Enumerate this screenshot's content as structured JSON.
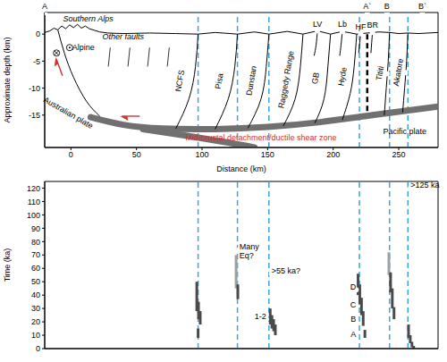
{
  "chart_data": [
    {
      "type": "cross_section",
      "xlabel": "Distance (km)",
      "ylabel": "Approximate depth (km)",
      "xlim": [
        -20,
        280
      ],
      "xticks": [
        0,
        50,
        100,
        150,
        200,
        250
      ],
      "ylim": [
        -21,
        4
      ],
      "yticks": [
        -15,
        -10,
        -5,
        0
      ],
      "section_labels": [
        {
          "label": "A",
          "x": -20
        },
        {
          "label": "A`",
          "x": 226
        },
        {
          "label": "B",
          "x": 241
        },
        {
          "label": "B`",
          "x": 268
        }
      ],
      "topography": {
        "color": "#000000",
        "x": [
          -20,
          -16,
          -13,
          -10,
          -7,
          -4,
          -1,
          2,
          5,
          8,
          11,
          14,
          18,
          22,
          28,
          40,
          60,
          80,
          97,
          110,
          127,
          140,
          151,
          165,
          177,
          188,
          198,
          207,
          218,
          226,
          235,
          243,
          250,
          257,
          265,
          280
        ],
        "y": [
          0.3,
          0.6,
          1.1,
          0.8,
          1.5,
          1.0,
          1.7,
          1.2,
          1.8,
          1.1,
          1.5,
          1.0,
          0.7,
          0.4,
          0.2,
          0.1,
          0.2,
          0.1,
          0,
          0.3,
          0,
          0.4,
          0,
          0.5,
          0,
          0.6,
          0,
          0.5,
          0,
          0.2,
          0.4,
          0.3,
          0.1,
          0.2,
          0.1,
          0.3
        ]
      },
      "alpine_fault": {
        "name": "Alpine",
        "color": "#000000",
        "x": [
          -10,
          -5,
          2,
          12,
          22
        ],
        "y": [
          0.8,
          -3.5,
          -8,
          -12.5,
          -15.2
        ]
      },
      "faults": [
        {
          "name": "NCFS",
          "x": [
            97,
            95,
            90,
            80
          ],
          "y": [
            0,
            -6,
            -12,
            -17.5
          ]
        },
        {
          "name": "Pisa",
          "x": [
            127,
            125,
            120,
            110
          ],
          "y": [
            0,
            -6,
            -12,
            -17.6
          ]
        },
        {
          "name": "Dunstan",
          "x": [
            151,
            149,
            145,
            135
          ],
          "y": [
            0,
            -6,
            -12,
            -17.4
          ]
        },
        {
          "name": "Raggedy Range",
          "x": [
            177,
            175,
            171,
            162
          ],
          "y": [
            0,
            -6,
            -12,
            -17.0
          ]
        },
        {
          "name": "GB",
          "x": [
            198,
            196,
            193,
            186
          ],
          "y": [
            0,
            -6,
            -12,
            -16.5
          ]
        },
        {
          "name": "Hyde",
          "x": [
            218,
            216,
            213,
            207
          ],
          "y": [
            0,
            -6,
            -11,
            -15.9
          ]
        },
        {
          "name": "LV",
          "x": [
            188,
            187,
            185.5
          ],
          "y": [
            0.6,
            -2,
            -4
          ]
        },
        {
          "name": "Lb",
          "x": [
            207,
            206,
            205
          ],
          "y": [
            0.5,
            -2,
            -4
          ]
        },
        {
          "name": "HF",
          "x": [
            221,
            220.3,
            219.5
          ],
          "y": [
            0.05,
            -1.5,
            -3.5
          ]
        },
        {
          "name": "BR",
          "x": [
            230,
            229.4,
            228.8
          ],
          "y": [
            0.3,
            -1.5,
            -3.5
          ]
        },
        {
          "name": "Tititi",
          "x": [
            243,
            242,
            240.5,
            239
          ],
          "y": [
            0.3,
            -5,
            -10,
            -15
          ]
        },
        {
          "name": "Akatore",
          "x": [
            257,
            256,
            254.5,
            253
          ],
          "y": [
            0.2,
            -5,
            -10,
            -14.5
          ]
        }
      ],
      "other_faults": [
        {
          "x": [
            30,
            28.5
          ],
          "y": [
            -2.5,
            -6
          ]
        },
        {
          "x": [
            45,
            43.5
          ],
          "y": [
            -2.5,
            -6
          ]
        },
        {
          "x": [
            60,
            58.5
          ],
          "y": [
            -2.5,
            -6
          ]
        },
        {
          "x": [
            75,
            73.5
          ],
          "y": [
            -2.5,
            -6
          ]
        }
      ],
      "plates": [
        {
          "color": "#707070",
          "x": [
            15,
            40,
            70,
            110,
            150,
            190,
            230,
            280
          ],
          "y": [
            -15.4,
            -16.8,
            -17.5,
            -17.6,
            -17.2,
            -16.3,
            -15,
            -13.4
          ]
        },
        {
          "color": "#707070",
          "x": [
            55,
            90,
            120,
            140
          ],
          "y": [
            -17.6,
            -18.9,
            -20.1,
            -21
          ]
        }
      ],
      "divider": {
        "x": [
          226,
          226
        ],
        "y": [
          0,
          -14.8
        ],
        "color": "#000000",
        "line_style": "dashed"
      },
      "fault_lines": {
        "x": [
          97,
          127,
          151,
          220,
          243,
          257
        ],
        "color": "#3aa6dd",
        "line_style": "dashed"
      },
      "annotations": [
        {
          "text": "Southern Alps",
          "color": "#000000"
        },
        {
          "text": "Other faults",
          "color": "#000000"
        },
        {
          "text": "Australian plate",
          "color": "#000000"
        },
        {
          "text": "Pacific plate",
          "color": "#000000"
        },
        {
          "text": "Mid-crustal detachment/ductile shear zone",
          "color": "#d0342c"
        }
      ]
    },
    {
      "type": "range_bars",
      "ylabel": "Time (ka)",
      "xlim": [
        -20,
        280
      ],
      "ylim": [
        0,
        125
      ],
      "yticks": [
        0,
        10,
        20,
        30,
        40,
        50,
        60,
        70,
        80,
        90,
        100,
        110,
        120
      ],
      "tick_labels": "y",
      "fault_lines": {
        "x": [
          97,
          127,
          151,
          220,
          243,
          257
        ],
        "color": "#3aa6dd",
        "line_style": "dashed"
      },
      "bars": [
        {
          "x": 96,
          "low": 28,
          "high": 50,
          "color": "#4a4a4a"
        },
        {
          "x": 97.3,
          "low": 22,
          "high": 35,
          "color": "#4a4a4a"
        },
        {
          "x": 98.6,
          "low": 18,
          "high": 28,
          "color": "#4a4a4a"
        },
        {
          "x": 97,
          "low": 8,
          "high": 15,
          "color": "#4a4a4a"
        },
        {
          "x": 126,
          "low": 45,
          "high": 70,
          "color": "#a0a0a0"
        },
        {
          "x": 127.3,
          "low": 37,
          "high": 48,
          "color": "#4a4a4a"
        },
        {
          "x": 152,
          "low": 18,
          "high": 30,
          "color": "#4a4a4a"
        },
        {
          "x": 153.3,
          "low": 15,
          "high": 25,
          "color": "#4a4a4a"
        },
        {
          "x": 154.6,
          "low": 13,
          "high": 22,
          "color": "#4a4a4a"
        },
        {
          "x": 155.9,
          "low": 10,
          "high": 18,
          "color": "#4a4a4a"
        },
        {
          "x": 219,
          "low": 40,
          "high": 56,
          "color": "#4a4a4a"
        },
        {
          "x": 220.3,
          "low": 33,
          "high": 48,
          "color": "#4a4a4a"
        },
        {
          "x": 221.6,
          "low": 25,
          "high": 38,
          "color": "#4a4a4a"
        },
        {
          "x": 222.9,
          "low": 17,
          "high": 28,
          "color": "#4a4a4a"
        },
        {
          "x": 224.2,
          "low": 8,
          "high": 14,
          "color": "#4a4a4a"
        },
        {
          "x": 242.5,
          "low": 55,
          "high": 72,
          "color": "#a0a0a0"
        },
        {
          "x": 243.8,
          "low": 42,
          "high": 57,
          "color": "#4a4a4a"
        },
        {
          "x": 245.1,
          "low": 30,
          "high": 45,
          "color": "#4a4a4a"
        },
        {
          "x": 246.4,
          "low": 22,
          "high": 31,
          "color": "#4a4a4a"
        },
        {
          "x": 257.5,
          "low": 8,
          "high": 18,
          "color": "#4a4a4a"
        },
        {
          "x": 258.8,
          "low": 4,
          "high": 10,
          "color": "#4a4a4a"
        },
        {
          "x": 260.1,
          "low": 1,
          "high": 5,
          "color": "#4a4a4a"
        },
        {
          "x": 261.4,
          "low": 0,
          "high": 2,
          "color": "#4a4a4a"
        }
      ],
      "annotations": [
        {
          "text": "Many Eq?",
          "color": "#000000"
        },
        {
          "text": ">55 ka?",
          "color": "#000000"
        },
        {
          "text": "1-2",
          "color": "#000000"
        },
        {
          "text": "D",
          "color": "#000000"
        },
        {
          "text": "C",
          "color": "#000000"
        },
        {
          "text": "B",
          "color": "#000000"
        },
        {
          "text": "A",
          "color": "#000000"
        },
        {
          "text": ">125 ka",
          "color": "#000000"
        }
      ]
    }
  ]
}
